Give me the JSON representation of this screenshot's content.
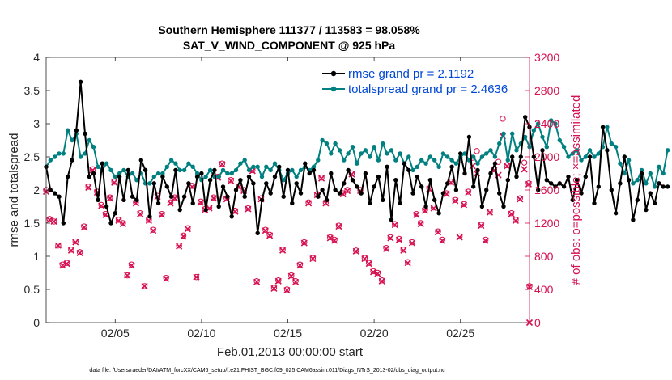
{
  "colors": {
    "rmse": "#000000",
    "spread": "#008080",
    "obs": "#D6104F",
    "legend_text": "#0047D6",
    "axis": "#262626"
  },
  "chart_data": {
    "type": "line",
    "title": "Southern Hemisphere 111377 / 113583 = 98.058%",
    "subtitle": "SAT_V_WIND_COMPONENT @ 925 hPa",
    "xlabel": "Feb.01,2013 00:00:00 start",
    "ylabel": "rmse and totalspread",
    "y2label": "# of obs: o=possible; ×=assimilated",
    "footnote": "data file: /Users/raeder/DAI/ATM_forcXX/CAM6_setup/f.e21.FHIST_BGC.f09_025.CAM6assim.011/Diags_NTrS_2013-02/obs_diag_output.nc",
    "xlim": [
      1,
      29
    ],
    "ylim": [
      0,
      4
    ],
    "y2lim": [
      0,
      3200
    ],
    "x_ticks": [
      5,
      10,
      15,
      20,
      25
    ],
    "x_tick_labels": [
      "02/05",
      "02/10",
      "02/15",
      "02/20",
      "02/25"
    ],
    "y_ticks": [
      "0",
      "0.5",
      "1",
      "1.5",
      "2",
      "2.5",
      "3",
      "3.5",
      "4"
    ],
    "y2_ticks": [
      "0",
      "400",
      "800",
      "1200",
      "1600",
      "2000",
      "2400",
      "2800",
      "3200"
    ],
    "legend_position": "top-right",
    "x_start": 1.0,
    "x_step": 0.25,
    "series": [
      {
        "name": "rmse grand pr = 2.1192",
        "axis": "left",
        "values": [
          2.35,
          2.0,
          1.95,
          1.9,
          1.5,
          2.2,
          2.45,
          2.9,
          3.63,
          2.85,
          2.2,
          2.25,
          1.85,
          2.4,
          1.75,
          1.5,
          1.65,
          2.2,
          1.85,
          2.3,
          1.9,
          1.85,
          2.45,
          2.3,
          1.6,
          2.1,
          1.8,
          2.2,
          2.05,
          1.9,
          2.3,
          1.7,
          1.9,
          2.1,
          1.8,
          2.2,
          2.25,
          1.7,
          2.15,
          2.3,
          1.75,
          2.05,
          1.9,
          1.6,
          2.0,
          2.15,
          1.9,
          2.2,
          2.1,
          1.35,
          1.85,
          2.1,
          1.95,
          2.2,
          2.35,
          1.9,
          2.3,
          1.8,
          2.1,
          1.95,
          2.4,
          2.25,
          2.3,
          1.9,
          2.0,
          1.85,
          2.25,
          2.0,
          1.95,
          2.1,
          2.3,
          2.15,
          2.05,
          1.95,
          2.25,
          1.8,
          2.05,
          2.2,
          1.85,
          2.35,
          1.55,
          2.15,
          1.8,
          2.4,
          2.3,
          1.95,
          2.2,
          2.05,
          1.75,
          2.15,
          1.85,
          1.65,
          1.95,
          2.1,
          2.35,
          2.0,
          2.55,
          2.25,
          2.8,
          2.05,
          2.3,
          1.75,
          2.0,
          2.25,
          2.4,
          1.95,
          1.75,
          2.15,
          2.5,
          2.2,
          2.5,
          3.1,
          2.95,
          2.5,
          2.0,
          2.6,
          2.15,
          2.1,
          2.05,
          2.1,
          2.05,
          2.2,
          1.85,
          2.15,
          1.95,
          2.2,
          2.5,
          1.8,
          2.05,
          2.95,
          2.6,
          2.0,
          1.65,
          2.1,
          2.5,
          2.15,
          1.55,
          1.85,
          2.25,
          1.7,
          1.95,
          1.8,
          2.1,
          2.05,
          2.05
        ]
      },
      {
        "name": "totalspread grand pr = 2.4636",
        "axis": "left",
        "values": [
          2.35,
          2.45,
          2.5,
          2.55,
          2.55,
          2.9,
          2.75,
          2.85,
          2.5,
          2.55,
          2.75,
          2.65,
          2.35,
          2.3,
          2.4,
          2.3,
          2.2,
          2.25,
          2.3,
          2.2,
          2.25,
          2.15,
          2.25,
          2.1,
          2.1,
          2.2,
          2.25,
          2.25,
          2.35,
          2.45,
          2.4,
          2.3,
          2.3,
          2.4,
          2.35,
          2.25,
          2.15,
          2.2,
          2.3,
          2.2,
          2.2,
          2.3,
          2.25,
          2.25,
          2.3,
          2.4,
          2.45,
          2.3,
          2.35,
          2.35,
          2.2,
          2.35,
          2.3,
          2.4,
          2.3,
          2.15,
          2.25,
          2.3,
          2.2,
          2.3,
          2.35,
          2.3,
          2.35,
          2.45,
          2.75,
          2.7,
          2.55,
          2.7,
          2.6,
          2.45,
          2.55,
          2.65,
          2.4,
          2.55,
          2.6,
          2.5,
          2.65,
          2.45,
          2.7,
          2.55,
          2.6,
          2.45,
          2.55,
          2.4,
          2.5,
          2.3,
          2.35,
          2.45,
          2.4,
          2.5,
          2.45,
          2.35,
          2.55,
          2.5,
          2.45,
          2.4,
          2.5,
          2.55,
          2.45,
          2.5,
          2.4,
          2.5,
          2.55,
          2.6,
          2.5,
          2.7,
          2.85,
          2.45,
          2.85,
          2.6,
          2.7,
          2.8,
          2.65,
          2.9,
          3.0,
          2.8,
          2.65,
          3.05,
          3.0,
          2.75,
          2.65,
          2.5,
          2.55,
          2.6,
          2.45,
          2.5,
          2.6,
          2.5,
          2.55,
          2.65,
          2.95,
          2.7,
          2.65,
          2.4,
          2.25,
          2.45,
          2.1,
          2.15,
          2.3,
          2.1,
          2.25,
          2.05,
          2.35,
          2.25,
          2.6
        ]
      }
    ],
    "obs_possible": {
      "axis": "right",
      "points": [
        [
          1.0,
          1600
        ],
        [
          1.2,
          1250
        ],
        [
          1.45,
          1220
        ],
        [
          1.7,
          930
        ],
        [
          1.95,
          700
        ],
        [
          2.2,
          720
        ],
        [
          2.45,
          880
        ],
        [
          2.7,
          980
        ],
        [
          2.95,
          850
        ],
        [
          3.2,
          1160
        ],
        [
          3.45,
          1640
        ],
        [
          3.7,
          1850
        ],
        [
          3.95,
          1580
        ],
        [
          4.2,
          1420
        ],
        [
          4.45,
          1310
        ],
        [
          4.7,
          1510
        ],
        [
          4.95,
          1700
        ],
        [
          5.2,
          1240
        ],
        [
          5.45,
          1200
        ],
        [
          5.7,
          570
        ],
        [
          5.95,
          700
        ],
        [
          6.2,
          1450
        ],
        [
          6.45,
          1320
        ],
        [
          6.7,
          440
        ],
        [
          6.95,
          1240
        ],
        [
          7.2,
          1120
        ],
        [
          7.45,
          1530
        ],
        [
          7.7,
          1310
        ],
        [
          7.95,
          540
        ],
        [
          8.2,
          1450
        ],
        [
          8.45,
          1510
        ],
        [
          8.7,
          930
        ],
        [
          8.95,
          1050
        ],
        [
          9.2,
          1140
        ],
        [
          9.45,
          1650
        ],
        [
          9.7,
          550
        ],
        [
          9.95,
          1460
        ],
        [
          10.2,
          1370
        ],
        [
          10.45,
          1390
        ],
        [
          10.7,
          1510
        ],
        [
          10.95,
          1760
        ],
        [
          11.2,
          1920
        ],
        [
          11.45,
          1500
        ],
        [
          11.7,
          1720
        ],
        [
          11.95,
          1350
        ],
        [
          12.2,
          1650
        ],
        [
          12.45,
          1600
        ],
        [
          12.7,
          1380
        ],
        [
          12.95,
          1840
        ],
        [
          13.2,
          500
        ],
        [
          13.45,
          1500
        ],
        [
          13.7,
          1120
        ],
        [
          13.95,
          1060
        ],
        [
          14.2,
          420
        ],
        [
          14.45,
          510
        ],
        [
          14.7,
          880
        ],
        [
          14.95,
          400
        ],
        [
          15.2,
          570
        ],
        [
          15.45,
          500
        ],
        [
          15.7,
          700
        ],
        [
          15.95,
          970
        ],
        [
          16.2,
          1450
        ],
        [
          16.45,
          780
        ],
        [
          16.7,
          1550
        ],
        [
          16.95,
          1750
        ],
        [
          17.2,
          1450
        ],
        [
          17.45,
          1030
        ],
        [
          17.7,
          1000
        ],
        [
          17.95,
          1170
        ],
        [
          18.2,
          1560
        ],
        [
          18.45,
          1600
        ],
        [
          18.7,
          1800
        ],
        [
          18.95,
          870
        ],
        [
          19.2,
          1600
        ],
        [
          19.45,
          780
        ],
        [
          19.7,
          720
        ],
        [
          19.95,
          620
        ],
        [
          20.2,
          600
        ],
        [
          20.45,
          510
        ],
        [
          20.7,
          900
        ],
        [
          20.95,
          1030
        ],
        [
          21.2,
          1190
        ],
        [
          21.45,
          1010
        ],
        [
          21.7,
          880
        ],
        [
          21.95,
          730
        ],
        [
          22.2,
          970
        ],
        [
          22.45,
          1310
        ],
        [
          22.7,
          1200
        ],
        [
          22.95,
          1360
        ],
        [
          23.2,
          1620
        ],
        [
          23.45,
          1390
        ],
        [
          23.7,
          1100
        ],
        [
          23.95,
          1000
        ],
        [
          24.2,
          1560
        ],
        [
          24.45,
          1700
        ],
        [
          24.7,
          1480
        ],
        [
          24.95,
          1040
        ],
        [
          25.2,
          1430
        ],
        [
          25.45,
          1580
        ],
        [
          25.7,
          1990
        ],
        [
          25.95,
          2070
        ],
        [
          26.2,
          1180
        ],
        [
          26.45,
          1000
        ],
        [
          26.7,
          1340
        ],
        [
          26.95,
          1850
        ],
        [
          27.2,
          1940
        ],
        [
          27.45,
          2460
        ],
        [
          27.7,
          1900
        ],
        [
          27.95,
          1320
        ],
        [
          28.2,
          1240
        ],
        [
          28.45,
          1500
        ],
        [
          28.7,
          1930
        ],
        [
          28.95,
          1680
        ],
        [
          29.15,
          440
        ]
      ]
    },
    "obs_assimilated": {
      "axis": "right",
      "points": [
        [
          1.0,
          1580
        ],
        [
          1.2,
          1240
        ],
        [
          1.45,
          1220
        ],
        [
          1.7,
          930
        ],
        [
          1.95,
          690
        ],
        [
          2.2,
          710
        ],
        [
          2.45,
          870
        ],
        [
          2.7,
          970
        ],
        [
          2.95,
          840
        ],
        [
          3.2,
          1150
        ],
        [
          3.45,
          1630
        ],
        [
          3.7,
          1840
        ],
        [
          3.95,
          1570
        ],
        [
          4.2,
          1410
        ],
        [
          4.45,
          1300
        ],
        [
          4.7,
          1500
        ],
        [
          4.95,
          1690
        ],
        [
          5.2,
          1230
        ],
        [
          5.45,
          1190
        ],
        [
          5.7,
          570
        ],
        [
          5.95,
          690
        ],
        [
          6.2,
          1440
        ],
        [
          6.45,
          1310
        ],
        [
          6.7,
          440
        ],
        [
          6.95,
          1230
        ],
        [
          7.2,
          1110
        ],
        [
          7.45,
          1520
        ],
        [
          7.7,
          1300
        ],
        [
          7.95,
          530
        ],
        [
          8.2,
          1440
        ],
        [
          8.45,
          1500
        ],
        [
          8.7,
          920
        ],
        [
          8.95,
          1040
        ],
        [
          9.2,
          1130
        ],
        [
          9.45,
          1640
        ],
        [
          9.7,
          550
        ],
        [
          9.95,
          1450
        ],
        [
          10.2,
          1360
        ],
        [
          10.45,
          1380
        ],
        [
          10.7,
          1500
        ],
        [
          10.95,
          1750
        ],
        [
          11.2,
          1910
        ],
        [
          11.45,
          1490
        ],
        [
          11.7,
          1710
        ],
        [
          11.95,
          1340
        ],
        [
          12.2,
          1640
        ],
        [
          12.45,
          1590
        ],
        [
          12.7,
          1370
        ],
        [
          12.95,
          1830
        ],
        [
          13.2,
          490
        ],
        [
          13.45,
          1490
        ],
        [
          13.7,
          1110
        ],
        [
          13.95,
          1050
        ],
        [
          14.2,
          410
        ],
        [
          14.45,
          500
        ],
        [
          14.7,
          870
        ],
        [
          14.95,
          390
        ],
        [
          15.2,
          560
        ],
        [
          15.45,
          490
        ],
        [
          15.7,
          690
        ],
        [
          15.95,
          960
        ],
        [
          16.2,
          1440
        ],
        [
          16.45,
          770
        ],
        [
          16.7,
          1540
        ],
        [
          16.95,
          1740
        ],
        [
          17.2,
          1440
        ],
        [
          17.45,
          1020
        ],
        [
          17.7,
          990
        ],
        [
          17.95,
          1160
        ],
        [
          18.2,
          1550
        ],
        [
          18.45,
          1590
        ],
        [
          18.7,
          1790
        ],
        [
          18.95,
          860
        ],
        [
          19.2,
          1590
        ],
        [
          19.45,
          770
        ],
        [
          19.7,
          710
        ],
        [
          19.95,
          610
        ],
        [
          20.2,
          590
        ],
        [
          20.45,
          500
        ],
        [
          20.7,
          890
        ],
        [
          20.95,
          1020
        ],
        [
          21.2,
          1180
        ],
        [
          21.45,
          1000
        ],
        [
          21.7,
          870
        ],
        [
          21.95,
          720
        ],
        [
          22.2,
          960
        ],
        [
          22.45,
          1300
        ],
        [
          22.7,
          1190
        ],
        [
          22.95,
          1350
        ],
        [
          23.2,
          1610
        ],
        [
          23.45,
          1380
        ],
        [
          23.7,
          1090
        ],
        [
          23.95,
          990
        ],
        [
          24.2,
          1550
        ],
        [
          24.45,
          1690
        ],
        [
          24.7,
          1470
        ],
        [
          24.95,
          1030
        ],
        [
          25.2,
          1420
        ],
        [
          25.45,
          1570
        ],
        [
          25.7,
          1890
        ],
        [
          25.95,
          1800
        ],
        [
          26.2,
          1170
        ],
        [
          26.45,
          990
        ],
        [
          26.7,
          1330
        ],
        [
          26.95,
          1840
        ],
        [
          27.2,
          1780
        ],
        [
          27.45,
          2250
        ],
        [
          27.7,
          1890
        ],
        [
          27.95,
          1310
        ],
        [
          28.2,
          1230
        ],
        [
          28.45,
          1490
        ],
        [
          28.7,
          1850
        ],
        [
          28.95,
          1670
        ],
        [
          29.15,
          430
        ],
        [
          29.4,
          0
        ]
      ]
    }
  }
}
